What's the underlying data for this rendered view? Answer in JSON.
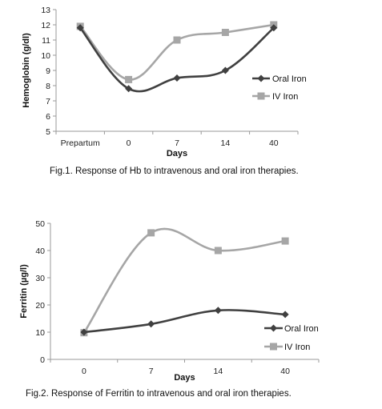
{
  "chart_data": [
    {
      "type": "line",
      "caption": "Fig.1. Response of Hb to intravenous and oral iron therapies.",
      "xlabel": "Days",
      "ylabel": "Hemoglobin (g/dl)",
      "categories": [
        "Prepartum",
        "0",
        "7",
        "14",
        "40"
      ],
      "ylim": [
        5,
        13
      ],
      "yticks": [
        5,
        6,
        7,
        8,
        9,
        10,
        11,
        12,
        13
      ],
      "grid": false,
      "legend_position": "right",
      "series": [
        {
          "name": "Oral Iron",
          "values": [
            11.8,
            7.8,
            8.5,
            9.0,
            11.8
          ],
          "color": "#404040",
          "marker": "diamond"
        },
        {
          "name": "IV Iron",
          "values": [
            11.9,
            8.4,
            11.0,
            11.5,
            12.0
          ],
          "color": "#a6a6a6",
          "marker": "square"
        }
      ]
    },
    {
      "type": "line",
      "caption": "Fig.2. Response of Ferritin to intravenous and oral iron therapies.",
      "xlabel": "Days",
      "ylabel": "Ferritin (µg/l)",
      "categories": [
        "0",
        "7",
        "14",
        "40"
      ],
      "ylim": [
        0,
        50
      ],
      "yticks": [
        0,
        10,
        20,
        30,
        40,
        50
      ],
      "grid": false,
      "legend_position": "bottom-right",
      "series": [
        {
          "name": "Oral Iron",
          "values": [
            10.0,
            13.0,
            18.0,
            16.5
          ],
          "color": "#404040",
          "marker": "diamond"
        },
        {
          "name": "IV Iron",
          "values": [
            9.8,
            46.5,
            40.0,
            43.5
          ],
          "color": "#a6a6a6",
          "marker": "square"
        }
      ]
    }
  ]
}
